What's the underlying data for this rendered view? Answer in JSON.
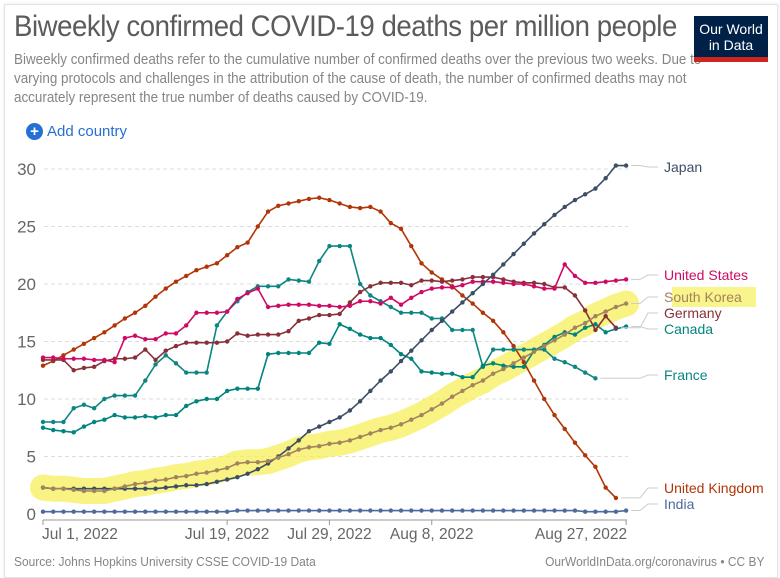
{
  "header": {
    "title": "Biweekly confirmed COVID-19 deaths per million people",
    "subtitle": "Biweekly confirmed deaths refer to the cumulative number of confirmed deaths over the previous two weeks. Due to varying protocols and challenges in the attribution of the cause of death, the number of confirmed deaths may not accurately represent the true number of deaths caused by COVID-19.",
    "logo_line1": "Our World",
    "logo_line2": "in Data"
  },
  "controls": {
    "add_country_label": "Add country",
    "add_icon": "plus-circle-icon"
  },
  "footer": {
    "source": "Source: Johns Hopkins University CSSE COVID-19 Data",
    "link": "OurWorldInData.org/coronavirus",
    "separator": "•",
    "license": "CC BY"
  },
  "colors": {
    "brand": "#002147",
    "brand_accent": "#ce261e",
    "link": "#2470d3",
    "highlight": "#f7ef5a"
  },
  "chart_data": {
    "type": "line",
    "title": "Biweekly confirmed COVID-19 deaths per million people",
    "xlabel": "",
    "ylabel": "",
    "x_start": "2022-07-01",
    "x_end": "2022-08-27",
    "x_step_days": 1,
    "xtick_labels": [
      "Jul 1, 2022",
      "Jul 19, 2022",
      "Jul 29, 2022",
      "Aug 8, 2022",
      "Aug 27, 2022"
    ],
    "xtick_day_offsets": [
      0,
      18,
      28,
      38,
      57
    ],
    "yticks": [
      0,
      5,
      10,
      15,
      20,
      25,
      30
    ],
    "ylim": [
      0,
      30
    ],
    "grid": "horizontal-dashed",
    "legend": "right-end-labels",
    "highlighted_series": "South Korea",
    "series": [
      {
        "name": "Japan",
        "color": "#3c4e66",
        "values": [
          2.3,
          2.2,
          2.2,
          2.2,
          2.2,
          2.2,
          2.2,
          2.2,
          2.2,
          2.2,
          2.2,
          2.2,
          2.3,
          2.4,
          2.5,
          2.5,
          2.6,
          2.8,
          3.0,
          3.2,
          3.5,
          3.9,
          4.4,
          5.0,
          5.7,
          6.4,
          7.2,
          7.6,
          8.0,
          8.4,
          9.0,
          9.8,
          10.7,
          11.6,
          12.4,
          13.3,
          14.2,
          15.1,
          16.0,
          16.8,
          17.6,
          18.4,
          19.2,
          20.0,
          20.8,
          21.7,
          22.6,
          23.5,
          24.4,
          25.2,
          26.0,
          26.7,
          27.3,
          27.8,
          28.3,
          29.2,
          30.3,
          30.3
        ]
      },
      {
        "name": "United States",
        "color": "#cf0a66",
        "values": [
          13.6,
          13.6,
          13.5,
          13.5,
          13.5,
          13.4,
          13.4,
          13.2,
          15.3,
          15.5,
          15.2,
          15.2,
          15.7,
          15.7,
          16.4,
          17.5,
          17.5,
          17.5,
          17.6,
          18.7,
          19.2,
          19.6,
          18.0,
          18.1,
          18.2,
          18.2,
          18.2,
          18.1,
          18.1,
          18.0,
          18.1,
          18.5,
          18.5,
          18.3,
          18.8,
          18.2,
          18.8,
          19.3,
          19.6,
          19.7,
          19.7,
          19.9,
          20.2,
          20.2,
          20.2,
          20.1,
          20.0,
          20.0,
          19.8,
          19.6,
          19.6,
          21.7,
          20.7,
          20.1,
          20.1,
          20.2,
          20.3,
          20.4
        ]
      },
      {
        "name": "South Korea",
        "color": "#a2845e",
        "values": [
          2.3,
          2.2,
          2.2,
          2.1,
          2.0,
          2.0,
          2.0,
          2.2,
          2.4,
          2.6,
          2.7,
          2.9,
          3.0,
          3.2,
          3.3,
          3.5,
          3.6,
          3.8,
          4.0,
          4.4,
          4.5,
          4.5,
          4.6,
          4.9,
          5.2,
          5.6,
          5.8,
          5.9,
          6.1,
          6.2,
          6.4,
          6.7,
          7.0,
          7.3,
          7.5,
          7.8,
          8.2,
          8.6,
          9.1,
          9.6,
          10.2,
          10.7,
          11.2,
          11.6,
          12.2,
          12.6,
          13.1,
          13.6,
          14.1,
          14.6,
          15.1,
          15.6,
          16.2,
          16.6,
          17.2,
          17.6,
          18.0,
          18.3
        ]
      },
      {
        "name": "Germany",
        "color": "#883039",
        "values": [
          13.4,
          13.4,
          13.4,
          12.5,
          12.7,
          12.8,
          13.3,
          13.5,
          13.5,
          13.6,
          14.3,
          13.4,
          14.2,
          14.6,
          14.9,
          14.9,
          14.9,
          14.9,
          15.0,
          15.7,
          15.5,
          15.6,
          15.6,
          15.6,
          15.9,
          16.8,
          17.0,
          17.3,
          17.3,
          17.4,
          18.4,
          19.3,
          19.8,
          20.1,
          20.1,
          20.1,
          19.9,
          20.3,
          20.3,
          20.2,
          20.3,
          20.4,
          20.6,
          20.6,
          20.6,
          20.4,
          20.2,
          20.1,
          20.1,
          20.0,
          19.7,
          19.7,
          19.0,
          17.7,
          16.0,
          17.2,
          16.2,
          null
        ]
      },
      {
        "name": "Canada",
        "color": "#00847e",
        "values": [
          7.5,
          7.3,
          7.2,
          7.1,
          7.6,
          8.0,
          8.2,
          8.6,
          8.4,
          8.4,
          8.5,
          8.4,
          8.6,
          8.6,
          9.4,
          9.8,
          10.0,
          10.0,
          10.7,
          10.9,
          10.9,
          10.9,
          13.9,
          14.0,
          14.0,
          14.0,
          14.0,
          14.9,
          14.8,
          16.5,
          16.1,
          15.6,
          15.3,
          15.3,
          14.7,
          13.9,
          13.5,
          12.4,
          12.3,
          12.2,
          12.2,
          11.9,
          11.9,
          12.9,
          13.1,
          12.9,
          12.8,
          12.8,
          14.2,
          14.7,
          15.4,
          15.8,
          15.6,
          16.2,
          16.5,
          15.8,
          16.1,
          16.3
        ]
      },
      {
        "name": "France",
        "color": "#0d8683",
        "values": [
          8.0,
          8.0,
          8.0,
          9.2,
          9.5,
          9.2,
          10.0,
          10.3,
          10.3,
          10.3,
          11.6,
          13.0,
          13.8,
          13.1,
          12.3,
          12.3,
          12.3,
          16.4,
          17.6,
          18.5,
          19.3,
          19.8,
          19.8,
          19.8,
          20.4,
          20.3,
          20.2,
          22.0,
          23.3,
          23.3,
          23.3,
          20.0,
          19.0,
          18.5,
          18.0,
          17.5,
          17.5,
          17.5,
          17.0,
          17.0,
          16.0,
          16.0,
          16.0,
          12.8,
          14.3,
          14.3,
          14.3,
          14.3,
          14.3,
          14.3,
          13.5,
          13.2,
          12.8,
          12.3,
          11.8,
          null,
          null,
          null
        ]
      },
      {
        "name": "United Kingdom",
        "color": "#b13507",
        "values": [
          12.9,
          13.3,
          13.8,
          14.3,
          14.8,
          15.3,
          15.8,
          16.4,
          17.0,
          17.5,
          18.1,
          18.9,
          19.6,
          20.2,
          20.7,
          21.2,
          21.5,
          21.8,
          22.5,
          23.2,
          23.6,
          25.0,
          26.3,
          26.8,
          27.0,
          27.2,
          27.4,
          27.5,
          27.3,
          27.0,
          26.7,
          26.6,
          26.7,
          26.3,
          25.3,
          24.8,
          23.3,
          21.8,
          21.0,
          20.4,
          19.8,
          19.0,
          18.3,
          17.5,
          16.8,
          15.8,
          14.6,
          13.2,
          11.6,
          10.0,
          8.6,
          7.4,
          6.2,
          5.1,
          4.1,
          2.3,
          1.4,
          null
        ]
      },
      {
        "name": "India",
        "color": "#4c6a9c",
        "values": [
          0.2,
          0.2,
          0.2,
          0.2,
          0.2,
          0.2,
          0.2,
          0.2,
          0.2,
          0.2,
          0.2,
          0.2,
          0.2,
          0.2,
          0.2,
          0.2,
          0.2,
          0.2,
          0.2,
          0.3,
          0.3,
          0.3,
          0.3,
          0.3,
          0.3,
          0.3,
          0.3,
          0.3,
          0.3,
          0.3,
          0.3,
          0.3,
          0.3,
          0.3,
          0.3,
          0.3,
          0.3,
          0.3,
          0.3,
          0.3,
          0.3,
          0.3,
          0.3,
          0.3,
          0.3,
          0.3,
          0.3,
          0.3,
          0.3,
          0.3,
          0.3,
          0.3,
          0.3,
          0.2,
          0.2,
          0.2,
          0.2,
          0.3
        ]
      }
    ]
  }
}
